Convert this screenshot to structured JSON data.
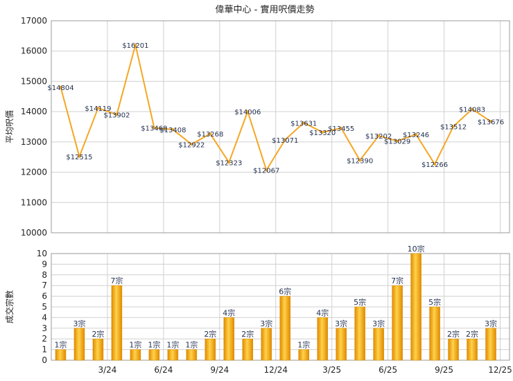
{
  "chart_data": [
    {
      "type": "line",
      "title": "偉華中心 - 實用呎價走勢",
      "ylabel": "平均呎價",
      "ylim": [
        10000,
        17000
      ],
      "yticks": [
        10000,
        11000,
        12000,
        13000,
        14000,
        15000,
        16000,
        17000
      ],
      "grid": true,
      "series": [
        {
          "color": "#f5a623",
          "values": [
            14804,
            12515,
            14119,
            13902,
            16201,
            13468,
            13408,
            12922,
            13268,
            12323,
            14006,
            12067,
            13071,
            13631,
            13320,
            13455,
            12390,
            13202,
            13029,
            13246,
            12266,
            13512,
            14083,
            13676
          ],
          "labels": [
            "$14804",
            "$12515",
            "$14119",
            "$13902",
            "$16201",
            "$13468",
            "$13408",
            "$12922",
            "$13268",
            "$12323",
            "$14006",
            "$12067",
            "$13071",
            "$13631",
            "$13320",
            "$13455",
            "$12390",
            "$13202",
            "$13029",
            "$13246",
            "$12266",
            "$13512",
            "$14083",
            "$13676"
          ]
        }
      ]
    },
    {
      "type": "bar",
      "ylabel": "成交宗數",
      "ylim": [
        0,
        10
      ],
      "yticks": [
        0,
        1,
        2,
        3,
        4,
        5,
        6,
        7,
        8,
        9,
        10
      ],
      "xtick_labels": [
        "3/24",
        "6/24",
        "9/24",
        "12/24",
        "3/25",
        "6/25",
        "9/25",
        "12/25"
      ],
      "grid": true,
      "series": [
        {
          "color": "#f5a623",
          "values": [
            1,
            3,
            2,
            7,
            1,
            1,
            1,
            1,
            2,
            4,
            2,
            3,
            6,
            1,
            4,
            3,
            5,
            3,
            7,
            10,
            5,
            2,
            2,
            3
          ],
          "labels": [
            "1宗",
            "3宗",
            "2宗",
            "7宗",
            "1宗",
            "1宗",
            "1宗",
            "1宗",
            "2宗",
            "4宗",
            "2宗",
            "3宗",
            "6宗",
            "1宗",
            "4宗",
            "3宗",
            "5宗",
            "3宗",
            "7宗",
            "10宗",
            "5宗",
            "2宗",
            "2宗",
            "3宗"
          ]
        }
      ]
    }
  ]
}
